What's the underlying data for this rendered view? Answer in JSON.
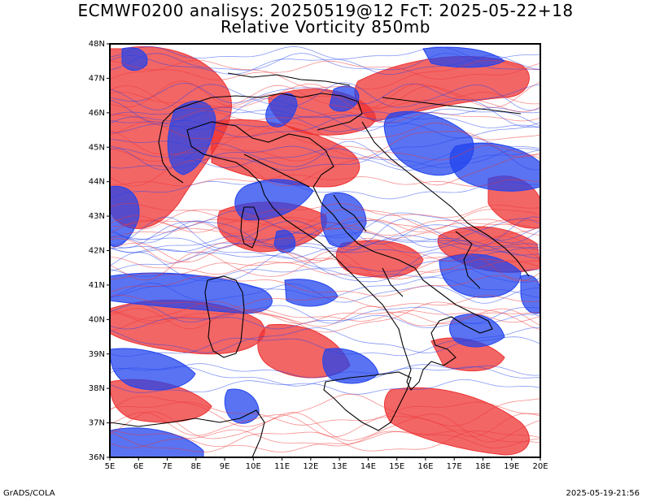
{
  "title": {
    "line1": "ECMWF0200 analisys: 20250519@12 FcT: 2025-05-22+18",
    "line2": "Relative Vorticity 850mb"
  },
  "footer": {
    "left": "GrADS/COLA",
    "right": "2025-05-19-21:56"
  },
  "map": {
    "lon_range": [
      5,
      20
    ],
    "lat_range": [
      36,
      48
    ],
    "lon_labels": [
      "5E",
      "6E",
      "7E",
      "8E",
      "9E",
      "10E",
      "11E",
      "12E",
      "13E",
      "14E",
      "15E",
      "16E",
      "17E",
      "18E",
      "19E",
      "20E"
    ],
    "lat_labels": [
      "36N",
      "37N",
      "38N",
      "39N",
      "40N",
      "41N",
      "42N",
      "43N",
      "44N",
      "45N",
      "46N",
      "47N",
      "48N"
    ],
    "colors": {
      "positive": "#ee3333",
      "negative": "#2244ee",
      "border": "#000000"
    }
  }
}
